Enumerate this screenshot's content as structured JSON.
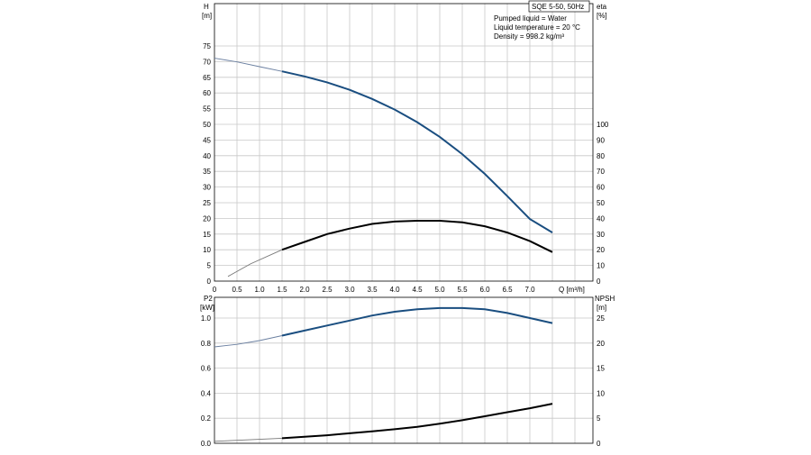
{
  "chart_data": [
    {
      "type": "line",
      "title": "SQE 5-50, 50Hz",
      "annotations": [
        "Pumped liquid = Water",
        "Liquid temperature = 20 °C",
        "Density = 998.2 kg/m³"
      ],
      "xlabel": "Q [m³/h]",
      "x_ticks": [
        "0",
        "0.5",
        "1.0",
        "1.5",
        "2.0",
        "2.5",
        "3.0",
        "3.5",
        "4.0",
        "4.5",
        "5.0",
        "5.5",
        "6.0",
        "6.5",
        "7.0"
      ],
      "xlim": [
        0,
        8.4
      ],
      "ylabel_left": [
        "H",
        "[m]"
      ],
      "ylim_left": [
        0,
        80
      ],
      "y_ticks_left": [
        "0",
        "5",
        "10",
        "15",
        "20",
        "25",
        "30",
        "35",
        "40",
        "45",
        "50",
        "55",
        "60",
        "65",
        "70",
        "75"
      ],
      "ylabel_right": [
        "eta",
        "[%]"
      ],
      "ylim_right": [
        0,
        100
      ],
      "y_ticks_right": [
        "0",
        "10",
        "20",
        "30",
        "40",
        "50",
        "60",
        "70",
        "80",
        "90",
        "100"
      ],
      "grid": true,
      "series": [
        {
          "axis": "left",
          "color": "#1a4e80",
          "x": [
            0,
            0.5,
            1.0,
            1.5,
            2.0,
            2.5,
            3.0,
            3.5,
            4.0,
            4.5,
            5.0,
            5.5,
            6.0,
            6.5,
            7.0,
            7.5
          ],
          "values": [
            71.1,
            69.9,
            68.4,
            66.9,
            65.3,
            63.4,
            61.0,
            58.1,
            54.7,
            50.7,
            46.0,
            40.5,
            34.2,
            27.1,
            19.8,
            15.5
          ]
        },
        {
          "axis": "right",
          "color": "#000000",
          "x": [
            0.3,
            0.8,
            1.5,
            2.0,
            2.5,
            3.0,
            3.5,
            4.0,
            4.5,
            5.0,
            5.5,
            6.0,
            6.5,
            7.0,
            7.5
          ],
          "values": [
            3,
            11,
            20,
            25,
            30,
            33.5,
            36.5,
            38,
            38.5,
            38.5,
            37.5,
            35,
            31,
            25.5,
            18.5
          ]
        }
      ]
    },
    {
      "type": "line",
      "xlabel": "Q [m³/h]",
      "xlim": [
        0,
        8.4
      ],
      "ylabel_left": [
        "P2",
        "[kW]"
      ],
      "ylim_left": [
        0,
        1.2
      ],
      "y_ticks_left": [
        "0.0",
        "0.2",
        "0.4",
        "0.6",
        "0.8",
        "1.0"
      ],
      "ylabel_right": [
        "NPSH",
        "[m]"
      ],
      "ylim_right": [
        0,
        30
      ],
      "y_ticks_right": [
        "0",
        "5",
        "10",
        "15",
        "20",
        "25"
      ],
      "grid": true,
      "series": [
        {
          "axis": "left",
          "color": "#1a4e80",
          "x": [
            0,
            0.5,
            1.0,
            1.5,
            2.0,
            2.5,
            3.0,
            3.5,
            4.0,
            4.5,
            5.0,
            5.5,
            6.0,
            6.5,
            7.0,
            7.5
          ],
          "values": [
            0.77,
            0.79,
            0.82,
            0.86,
            0.9,
            0.94,
            0.98,
            1.02,
            1.05,
            1.07,
            1.08,
            1.08,
            1.07,
            1.04,
            1.0,
            0.96
          ]
        },
        {
          "axis": "right",
          "color": "#000000",
          "x": [
            0,
            0.5,
            1.0,
            1.5,
            2.0,
            2.5,
            3.0,
            3.5,
            4.0,
            4.5,
            5.0,
            5.5,
            6.0,
            6.5,
            7.0,
            7.5
          ],
          "values": [
            0.4,
            0.6,
            0.8,
            1.0,
            1.3,
            1.6,
            2.0,
            2.4,
            2.8,
            3.3,
            3.9,
            4.6,
            5.4,
            6.2,
            7.0,
            7.9
          ]
        }
      ]
    }
  ]
}
